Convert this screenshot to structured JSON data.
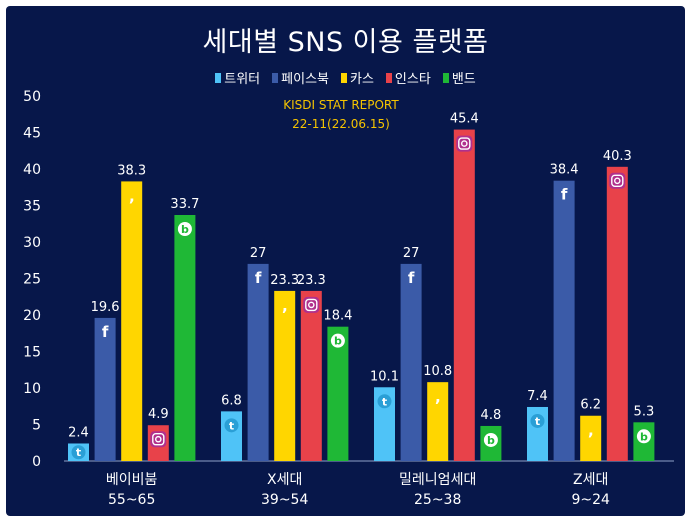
{
  "chart_data": {
    "type": "bar",
    "title": "세대별 SNS 이용 플랫폼",
    "source_line1": "KISDI STAT REPORT",
    "source_line2": "22-11(22.06.15)",
    "categories": [
      {
        "line1": "베이비붐",
        "line2": "55~65"
      },
      {
        "line1": "X세대",
        "line2": "39~54"
      },
      {
        "line1": "밀레니엄세대",
        "line2": "25~38"
      },
      {
        "line1": "Z세대",
        "line2": "9~24"
      }
    ],
    "series": [
      {
        "name": "트위터",
        "color": "#4fc3f7",
        "icon": "twitter-icon",
        "values": [
          2.4,
          6.8,
          10.1,
          7.4
        ]
      },
      {
        "name": "페이스북",
        "color": "#3b5ba8",
        "icon": "facebook-icon",
        "values": [
          19.6,
          27,
          27,
          38.4
        ]
      },
      {
        "name": "카스",
        "color": "#ffd600",
        "icon": "kakaostory-icon",
        "values": [
          38.3,
          23.3,
          10.8,
          6.2
        ]
      },
      {
        "name": "인스타",
        "color": "#e8424a",
        "icon": "instagram-icon",
        "values": [
          4.9,
          23.3,
          45.4,
          40.3
        ]
      },
      {
        "name": "밴드",
        "color": "#1fb836",
        "icon": "band-icon",
        "values": [
          33.7,
          18.4,
          4.8,
          5.3
        ]
      }
    ],
    "value_labels": [
      [
        "2.4",
        "19.6",
        "38.3",
        "4.9",
        "33.7"
      ],
      [
        "6.8",
        "27",
        "23.3",
        "23.3",
        "18.4"
      ],
      [
        "10.1",
        "27",
        "10.8",
        "45.4",
        "4.8"
      ],
      [
        "7.4",
        "38.4",
        "6.2",
        "40.3",
        "5.3"
      ]
    ],
    "ylim": [
      0,
      50
    ],
    "yticks": [
      0,
      5,
      10,
      15,
      20,
      25,
      30,
      35,
      40,
      45,
      50
    ],
    "grid": false,
    "legend_position": "top-center"
  }
}
